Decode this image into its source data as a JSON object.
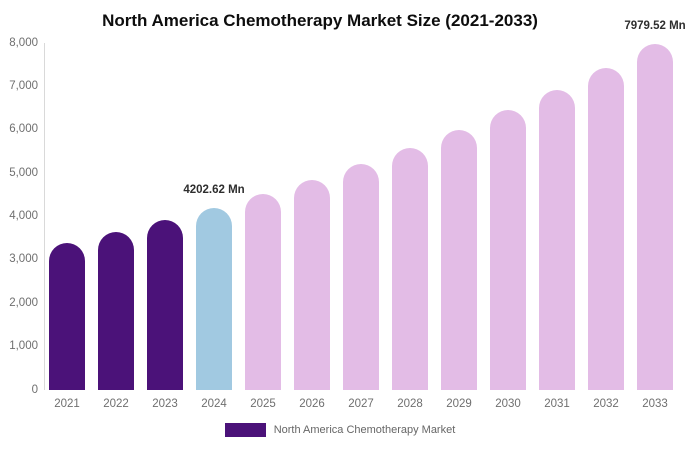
{
  "title": "North America Chemotherapy Market Size (2021-2033)",
  "legend": {
    "label": "North America Chemotherapy Market",
    "swatch_color": "#4B1279"
  },
  "chart_data": {
    "type": "bar",
    "title": "North America Chemotherapy Market Size (2021-2033)",
    "unit": "Mn",
    "categories": [
      "2021",
      "2022",
      "2023",
      "2024",
      "2025",
      "2026",
      "2027",
      "2028",
      "2029",
      "2030",
      "2031",
      "2032",
      "2033"
    ],
    "values": [
      3394,
      3645,
      3914,
      4202.62,
      4513,
      4846,
      5204,
      5588,
      6001,
      6444,
      6920,
      7431,
      7979.52
    ],
    "bar_colors": [
      "#4B1279",
      "#4B1279",
      "#4B1279",
      "#A1C9E1",
      "#E3BCE6",
      "#E3BCE6",
      "#E3BCE6",
      "#E3BCE6",
      "#E3BCE6",
      "#E3BCE6",
      "#E3BCE6",
      "#E3BCE6",
      "#E3BCE6"
    ],
    "color_roles": {
      "historical_2021_2023": "#4B1279",
      "base_year_2024": "#A1C9E1",
      "forecast_2025_2033": "#E3BCE6"
    },
    "data_labels": [
      {
        "category": "2024",
        "text": "4202.62 Mn"
      },
      {
        "category": "2033",
        "text": "7979.52 Mn"
      }
    ],
    "y_axis": {
      "min": 0,
      "max": 8000,
      "tick_step": 1000,
      "tick_labels": [
        "0",
        "1,000",
        "2,000",
        "3,000",
        "4,000",
        "5,000",
        "6,000",
        "7,000",
        "8,000"
      ]
    },
    "xlabel": "",
    "ylabel": "",
    "grid": false,
    "legend_position": "bottom",
    "legend_entries": [
      "North America Chemotherapy Market"
    ]
  }
}
